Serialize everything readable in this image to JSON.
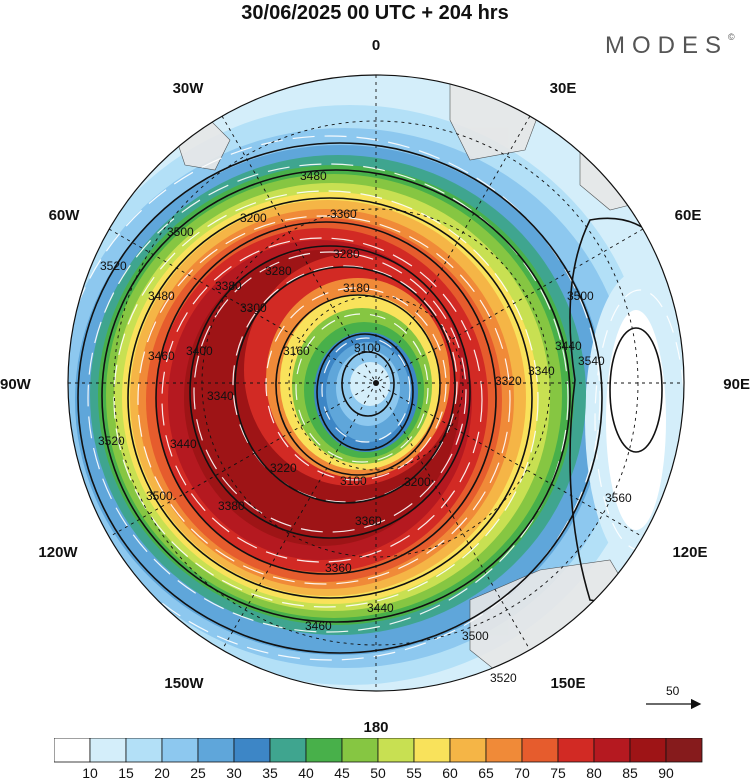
{
  "title": "30/06/2025  00 UTC  + 204 hrs",
  "brand": "MODES",
  "brand_mark": "©",
  "longitude_labels": {
    "top": "0",
    "bottom": "180",
    "left": "90W",
    "right": "90E",
    "w30": "30W",
    "e30": "30E",
    "w60": "60W",
    "e60": "60E",
    "w120": "120W",
    "e120": "120E",
    "w150": "150W",
    "e150": "150E"
  },
  "contour_labels": [
    "3100",
    "3160",
    "3180",
    "3200",
    "3220",
    "3280",
    "3300",
    "3320",
    "3340",
    "3360",
    "3380",
    "3400",
    "3440",
    "3460",
    "3480",
    "3500",
    "3520",
    "3540",
    "3560"
  ],
  "reference_vector": "50",
  "colorbar": {
    "ticks": [
      "10",
      "15",
      "20",
      "25",
      "30",
      "35",
      "40",
      "45",
      "50",
      "55",
      "60",
      "65",
      "70",
      "75",
      "80",
      "85",
      "90"
    ],
    "colors": [
      "#ffffff",
      "#d4eefa",
      "#b3e0f7",
      "#8dc8ef",
      "#5fa6da",
      "#3d86c6",
      "#3fa58f",
      "#48b04a",
      "#86c642",
      "#c8e052",
      "#f9e25b",
      "#f5b546",
      "#f08a38",
      "#e65c2d",
      "#d22a24",
      "#b51920",
      "#9e1416",
      "#861b1c"
    ]
  },
  "colors": {
    "jet_core": "#a31a1d",
    "polar_center": "#8dc8ef",
    "outer": "#b3e0f7"
  }
}
